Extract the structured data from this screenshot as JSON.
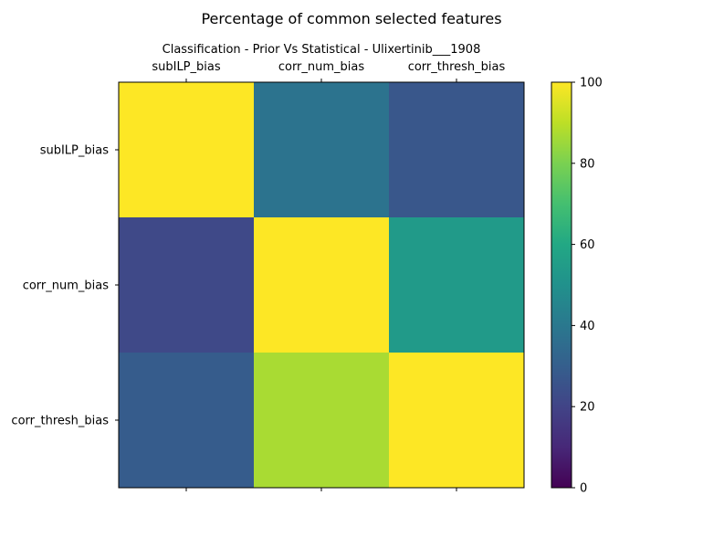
{
  "chart_data": {
    "type": "heatmap",
    "title": "Percentage of common selected features",
    "subtitle": "Classification - Prior Vs Statistical - Ulixertinib___1908",
    "x_categories": [
      "subILP_bias",
      "corr_num_bias",
      "corr_thresh_bias"
    ],
    "y_categories": [
      "subILP_bias",
      "corr_num_bias",
      "corr_thresh_bias"
    ],
    "values": [
      [
        100,
        38,
        27
      ],
      [
        22,
        100,
        54
      ],
      [
        29,
        87,
        100
      ]
    ],
    "colormap": "viridis",
    "vmin": 0,
    "vmax": 100,
    "colorbar_ticks": [
      0,
      20,
      40,
      60,
      80,
      100
    ],
    "grid": false
  }
}
